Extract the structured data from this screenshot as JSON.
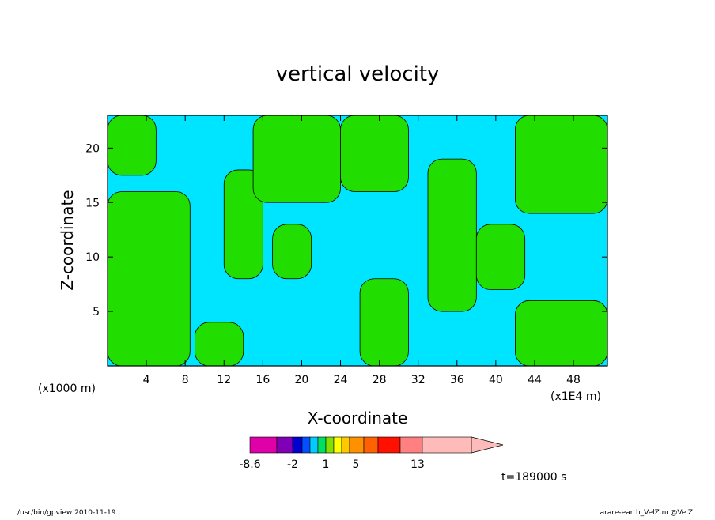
{
  "chart_data": {
    "type": "heatmap",
    "title": "vertical velocity",
    "xlabel": "X-coordinate",
    "ylabel": "Z-coordinate",
    "x_unit": "(x1E4 m)",
    "y_unit": "(x1000 m)",
    "xlim": [
      0,
      51.5
    ],
    "ylim": [
      0,
      23
    ],
    "x_ticks": [
      4,
      8,
      12,
      16,
      20,
      24,
      28,
      32,
      36,
      40,
      44,
      48
    ],
    "y_ticks": [
      5,
      10,
      15,
      20
    ],
    "grid": false,
    "field_colors": {
      "negative": "#00e5ff",
      "positive": "#22dd00"
    },
    "regions": [
      {
        "sign": "positive",
        "x": [
          0,
          8.5
        ],
        "y": [
          0,
          16
        ]
      },
      {
        "sign": "positive",
        "x": [
          0,
          5
        ],
        "y": [
          17.5,
          23
        ]
      },
      {
        "sign": "positive",
        "x": [
          9,
          14
        ],
        "y": [
          0,
          4
        ]
      },
      {
        "sign": "positive",
        "x": [
          12,
          16
        ],
        "y": [
          8,
          18
        ]
      },
      {
        "sign": "positive",
        "x": [
          15,
          24
        ],
        "y": [
          15,
          23
        ]
      },
      {
        "sign": "positive",
        "x": [
          17,
          21
        ],
        "y": [
          8,
          13
        ]
      },
      {
        "sign": "positive",
        "x": [
          24,
          31
        ],
        "y": [
          16,
          23
        ]
      },
      {
        "sign": "positive",
        "x": [
          26,
          31
        ],
        "y": [
          0,
          8
        ]
      },
      {
        "sign": "positive",
        "x": [
          33,
          38
        ],
        "y": [
          5,
          19
        ]
      },
      {
        "sign": "positive",
        "x": [
          38,
          43
        ],
        "y": [
          7,
          13
        ]
      },
      {
        "sign": "positive",
        "x": [
          42,
          51.5
        ],
        "y": [
          0,
          6
        ]
      },
      {
        "sign": "positive",
        "x": [
          42,
          51.5
        ],
        "y": [
          14,
          23
        ]
      }
    ]
  },
  "colorbar": {
    "colors": [
      "#e000a8",
      "#8000b8",
      "#0000d0",
      "#0050ff",
      "#00ccff",
      "#00e060",
      "#80e000",
      "#ffff00",
      "#ffc800",
      "#ff9000",
      "#ff6000",
      "#ff1000",
      "#ff8080",
      "#ffbaba"
    ],
    "widths": [
      34,
      20,
      12,
      10,
      10,
      10,
      10,
      10,
      10,
      18,
      18,
      28,
      28,
      62
    ],
    "extend_color": "#ffbaba",
    "labels": [
      "-8.6",
      "-2",
      "1",
      "5",
      "13"
    ],
    "label_positions": [
      0,
      54,
      96,
      134,
      212
    ]
  },
  "time_label": "t=189000 s",
  "footer_left": "/usr/bin/gpview   2010-11-19",
  "footer_right": "arare-earth_VelZ.nc@VelZ"
}
